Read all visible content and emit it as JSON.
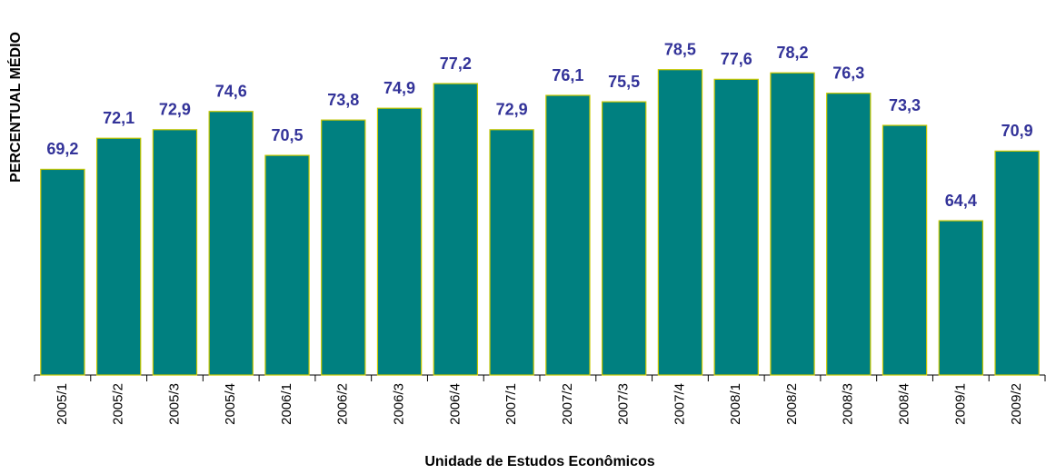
{
  "chart_data": {
    "type": "bar",
    "x_label": "Unidade de Estudos Econômicos",
    "y_label": "PERCENTUAL MÉDIO",
    "categories": [
      "2005/1",
      "2005/2",
      "2005/3",
      "2005/4",
      "2006/1",
      "2006/2",
      "2006/3",
      "2006/4",
      "2007/1",
      "2007/2",
      "2007/3",
      "2007/4",
      "2008/1",
      "2008/2",
      "2008/3",
      "2008/4",
      "2009/1",
      "2009/2"
    ],
    "values": [
      69.2,
      72.1,
      72.9,
      74.6,
      70.5,
      73.8,
      74.9,
      77.2,
      72.9,
      76.1,
      75.5,
      78.5,
      77.6,
      78.2,
      76.3,
      73.3,
      64.4,
      70.9
    ],
    "value_labels": [
      "69,2",
      "72,1",
      "72,9",
      "74,6",
      "70,5",
      "73,8",
      "74,9",
      "77,2",
      "72,9",
      "76,1",
      "75,5",
      "78,5",
      "77,6",
      "78,2",
      "76,3",
      "73,3",
      "64,4",
      "70,9"
    ],
    "color": "#008080",
    "ylim": [
      50,
      85
    ]
  }
}
